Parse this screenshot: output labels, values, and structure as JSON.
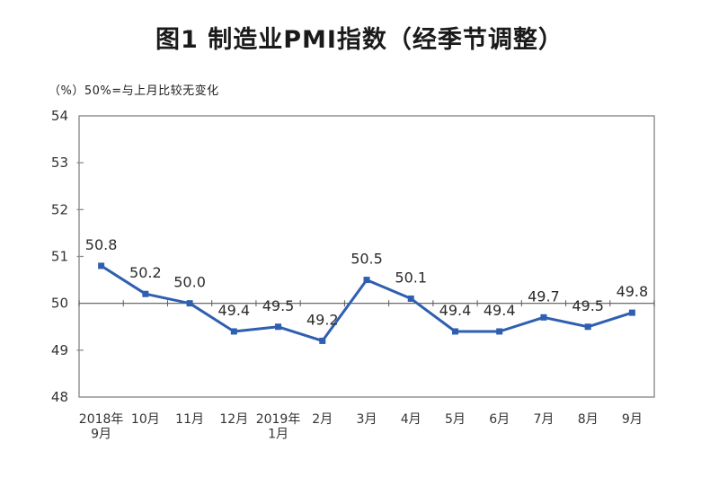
{
  "page": {
    "background": "#ffffff"
  },
  "chart_data": {
    "type": "line",
    "title": "图1 制造业PMI指数（经季节调整）",
    "subtitle": "（%）50%=与上月比较无变化",
    "categories": [
      [
        "2018年",
        "9月"
      ],
      [
        "10月"
      ],
      [
        "11月"
      ],
      [
        "12月"
      ],
      [
        "2019年",
        "1月"
      ],
      [
        "2月"
      ],
      [
        "3月"
      ],
      [
        "4月"
      ],
      [
        "5月"
      ],
      [
        "6月"
      ],
      [
        "7月"
      ],
      [
        "8月"
      ],
      [
        "9月"
      ]
    ],
    "series": [
      {
        "name": "制造业PMI",
        "values": [
          50.8,
          50.2,
          50.0,
          49.4,
          49.5,
          49.2,
          50.5,
          50.1,
          49.4,
          49.4,
          49.7,
          49.5,
          49.8
        ],
        "data_labels": [
          "50.8",
          "50.2",
          "50.0",
          "49.4",
          "49.5",
          "49.2",
          "50.5",
          "50.1",
          "49.4",
          "49.4",
          "49.7",
          "49.5",
          "49.8"
        ]
      }
    ],
    "ylabel": "%",
    "xlabel": "",
    "ylim": [
      48,
      54
    ],
    "yticks": [
      48,
      49,
      50,
      51,
      52,
      53,
      54
    ],
    "reference_value": 50,
    "grid": false,
    "legend": "none",
    "marker": "square",
    "colors": {
      "line": "#2e5fb0",
      "marker": "#2e5fb0",
      "plot_border": "#8c8c8c",
      "reference_line": "#595959",
      "axis_text": "#333333",
      "data_label_text": "#2b2b2b",
      "title_text": "#1a1a1a"
    }
  }
}
